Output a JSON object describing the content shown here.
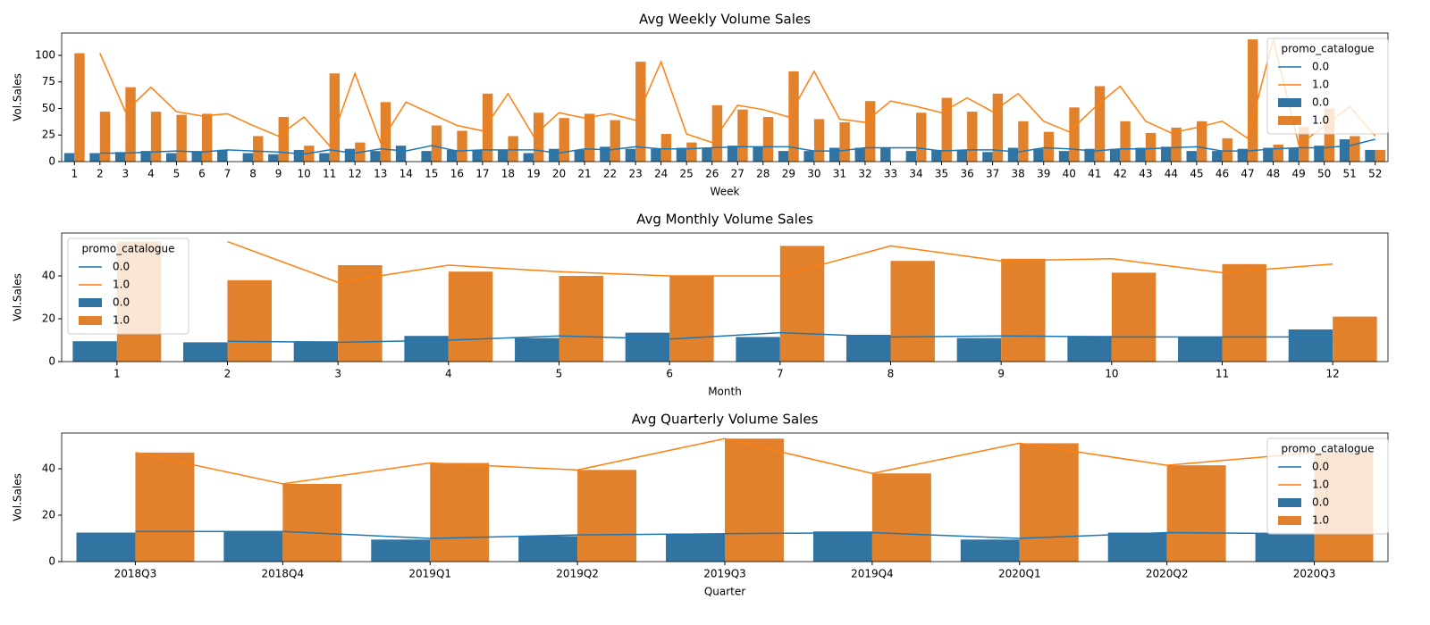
{
  "chart_data": [
    {
      "type": "bar",
      "title": "Avg Weekly Volume Sales",
      "xlabel": "Week",
      "ylabel": "Vol.Sales",
      "categories": [
        "1",
        "2",
        "3",
        "4",
        "5",
        "6",
        "7",
        "8",
        "9",
        "10",
        "11",
        "12",
        "13",
        "14",
        "15",
        "16",
        "17",
        "18",
        "19",
        "20",
        "21",
        "22",
        "23",
        "24",
        "25",
        "26",
        "27",
        "28",
        "29",
        "30",
        "31",
        "32",
        "33",
        "34",
        "35",
        "36",
        "37",
        "38",
        "39",
        "40",
        "41",
        "42",
        "43",
        "44",
        "45",
        "46",
        "47",
        "48",
        "49",
        "50",
        "51",
        "52"
      ],
      "ylim": [
        0,
        121
      ],
      "yticks": [
        0,
        25,
        50,
        75,
        100
      ],
      "legend_title": "promo_catalogue",
      "legend": "upper right",
      "series": [
        {
          "name": "0.0",
          "mark": "line",
          "color": "#1f77b4",
          "values": [
            null,
            8,
            8,
            9,
            10,
            9,
            11,
            10,
            9,
            7,
            11,
            8,
            12,
            10,
            15,
            10,
            11,
            11,
            11,
            8,
            12,
            11,
            14,
            12,
            12,
            13,
            14,
            14,
            14,
            10,
            10,
            13,
            13,
            13,
            10,
            11,
            11,
            9,
            13,
            12,
            10,
            12,
            12,
            13,
            14,
            10,
            10,
            12,
            13,
            13,
            15,
            21
          ]
        },
        {
          "name": "1.0",
          "mark": "line",
          "color": "#ff7f0e",
          "values": [
            null,
            102,
            47,
            70,
            47,
            43,
            45,
            34,
            24,
            42,
            15,
            83,
            18,
            56,
            45,
            34,
            29,
            64,
            24,
            46,
            41,
            45,
            39,
            94,
            26,
            18,
            53,
            49,
            42,
            85,
            40,
            37,
            57,
            52,
            46,
            60,
            47,
            64,
            38,
            28,
            51,
            71,
            38,
            27,
            32,
            38,
            22,
            115,
            16,
            33,
            52,
            24
          ]
        },
        {
          "name": "0.0",
          "mark": "bar",
          "color": "#3274a1",
          "values": [
            8,
            8,
            9,
            10,
            8,
            10,
            11,
            8,
            7,
            11,
            8,
            12,
            10,
            15,
            10,
            11,
            11,
            11,
            8,
            12,
            11,
            14,
            12,
            12,
            13,
            13,
            15,
            14,
            10,
            10,
            13,
            13,
            13,
            10,
            11,
            11,
            9,
            13,
            12,
            10,
            12,
            12,
            13,
            14,
            10,
            10,
            12,
            13,
            13,
            15,
            21,
            11
          ]
        },
        {
          "name": "1.0",
          "mark": "bar",
          "color": "#e1812c",
          "values": [
            102,
            47,
            70,
            47,
            44,
            45,
            null,
            24,
            42,
            15,
            83,
            18,
            56,
            null,
            34,
            29,
            64,
            24,
            46,
            41,
            45,
            39,
            94,
            26,
            18,
            53,
            49,
            42,
            85,
            40,
            37,
            57,
            null,
            46,
            60,
            47,
            64,
            38,
            28,
            51,
            71,
            38,
            27,
            32,
            38,
            22,
            115,
            16,
            33,
            50,
            24,
            11
          ]
        }
      ]
    },
    {
      "type": "bar",
      "title": "Avg Monthly Volume Sales",
      "xlabel": "Month",
      "ylabel": "Vol.Sales",
      "categories": [
        "1",
        "2",
        "3",
        "4",
        "5",
        "6",
        "7",
        "8",
        "9",
        "10",
        "11",
        "12"
      ],
      "ylim": [
        0,
        60
      ],
      "yticks": [
        0,
        20,
        40
      ],
      "legend_title": "promo_catalogue",
      "legend": "upper left",
      "series": [
        {
          "name": "0.0",
          "mark": "line",
          "color": "#1f77b4",
          "values": [
            null,
            9.5,
            9,
            10,
            12,
            10.5,
            13.5,
            11.5,
            12,
            11.5,
            11.5,
            11.5
          ]
        },
        {
          "name": "1.0",
          "mark": "line",
          "color": "#ff7f0e",
          "values": [
            null,
            56,
            37,
            45,
            42,
            40,
            40,
            54,
            47,
            48,
            41.5,
            45.5
          ]
        },
        {
          "name": "0.0",
          "mark": "bar",
          "color": "#3274a1",
          "values": [
            9.5,
            9,
            9.5,
            12,
            11,
            13.5,
            11.5,
            12.5,
            11,
            12,
            11.5,
            15
          ]
        },
        {
          "name": "1.0",
          "mark": "bar",
          "color": "#e1812c",
          "values": [
            56,
            38,
            45,
            42,
            40,
            40,
            54,
            47,
            48,
            41.5,
            45.5,
            21
          ]
        }
      ]
    },
    {
      "type": "bar",
      "title": "Avg Quarterly Volume Sales",
      "xlabel": "Quarter",
      "ylabel": "Vol.Sales",
      "categories": [
        "2018Q3",
        "2018Q4",
        "2019Q1",
        "2019Q2",
        "2019Q3",
        "2019Q4",
        "2020Q1",
        "2020Q2",
        "2020Q3"
      ],
      "ylim": [
        0,
        55.4
      ],
      "yticks": [
        0,
        20,
        40
      ],
      "legend_title": "promo_catalogue",
      "legend": "upper right",
      "series": [
        {
          "name": "0.0",
          "mark": "line",
          "color": "#1f77b4",
          "values": [
            13,
            13,
            10,
            11.5,
            12,
            12.5,
            10,
            12.5,
            12
          ]
        },
        {
          "name": "1.0",
          "mark": "line",
          "color": "#ff7f0e",
          "values": [
            47,
            33.5,
            42.5,
            39.5,
            53,
            38,
            51,
            41.5,
            47
          ]
        },
        {
          "name": "0.0",
          "mark": "bar",
          "color": "#3274a1",
          "values": [
            12.5,
            13,
            9.5,
            11,
            12,
            13,
            9.5,
            12.5,
            12
          ]
        },
        {
          "name": "1.0",
          "mark": "bar",
          "color": "#e1812c",
          "values": [
            47,
            33.5,
            42.5,
            39.5,
            53,
            38,
            51,
            41.5,
            47
          ]
        }
      ]
    }
  ]
}
